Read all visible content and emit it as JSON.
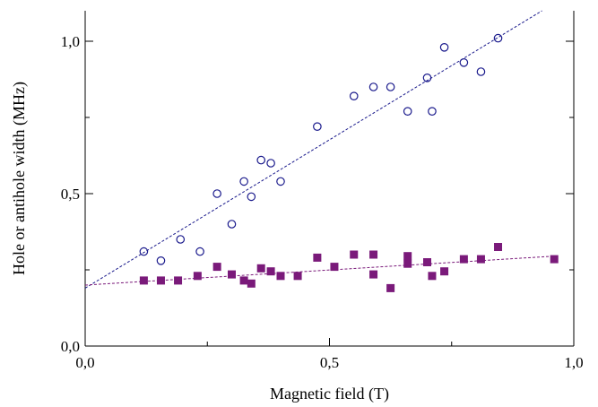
{
  "chart_data": {
    "type": "scatter",
    "title": "",
    "xlabel": "Magnetic field (T)",
    "ylabel": "Hole or antihole width (MHz)",
    "xlim": [
      0.0,
      1.0
    ],
    "ylim": [
      0.0,
      1.1
    ],
    "x_ticks": [
      0.0,
      0.5,
      1.0
    ],
    "x_tick_labels": [
      "0,0",
      "0,5",
      "1,0"
    ],
    "y_ticks": [
      0.0,
      0.5,
      1.0
    ],
    "y_tick_labels": [
      "0,0",
      "0,5",
      "1,0"
    ],
    "grid": false,
    "legend": "none",
    "series": [
      {
        "marker": "open-circle",
        "color": "#1a1a8c",
        "points": [
          [
            0.12,
            0.31
          ],
          [
            0.155,
            0.28
          ],
          [
            0.195,
            0.35
          ],
          [
            0.235,
            0.31
          ],
          [
            0.27,
            0.5
          ],
          [
            0.3,
            0.4
          ],
          [
            0.325,
            0.54
          ],
          [
            0.34,
            0.49
          ],
          [
            0.36,
            0.61
          ],
          [
            0.38,
            0.6
          ],
          [
            0.4,
            0.54
          ],
          [
            0.475,
            0.72
          ],
          [
            0.55,
            0.82
          ],
          [
            0.59,
            0.85
          ],
          [
            0.625,
            0.85
          ],
          [
            0.66,
            0.77
          ],
          [
            0.7,
            0.88
          ],
          [
            0.71,
            0.77
          ],
          [
            0.735,
            0.98
          ],
          [
            0.775,
            0.93
          ],
          [
            0.81,
            0.9
          ],
          [
            0.845,
            1.01
          ]
        ],
        "fit": {
          "x": [
            0.0,
            0.935
          ],
          "y": [
            0.19,
            1.1
          ]
        }
      },
      {
        "marker": "filled-square",
        "color": "#7a1a7a",
        "points": [
          [
            0.12,
            0.215
          ],
          [
            0.155,
            0.215
          ],
          [
            0.19,
            0.215
          ],
          [
            0.23,
            0.23
          ],
          [
            0.27,
            0.26
          ],
          [
            0.3,
            0.235
          ],
          [
            0.325,
            0.215
          ],
          [
            0.34,
            0.205
          ],
          [
            0.36,
            0.255
          ],
          [
            0.38,
            0.245
          ],
          [
            0.4,
            0.23
          ],
          [
            0.435,
            0.23
          ],
          [
            0.475,
            0.29
          ],
          [
            0.51,
            0.26
          ],
          [
            0.55,
            0.3
          ],
          [
            0.59,
            0.3
          ],
          [
            0.59,
            0.235
          ],
          [
            0.625,
            0.19
          ],
          [
            0.66,
            0.295
          ],
          [
            0.66,
            0.27
          ],
          [
            0.7,
            0.275
          ],
          [
            0.71,
            0.23
          ],
          [
            0.735,
            0.245
          ],
          [
            0.775,
            0.285
          ],
          [
            0.81,
            0.285
          ],
          [
            0.845,
            0.325
          ],
          [
            0.96,
            0.285
          ]
        ],
        "fit": {
          "x": [
            0.0,
            0.96
          ],
          "y": [
            0.2,
            0.295
          ]
        }
      }
    ]
  }
}
